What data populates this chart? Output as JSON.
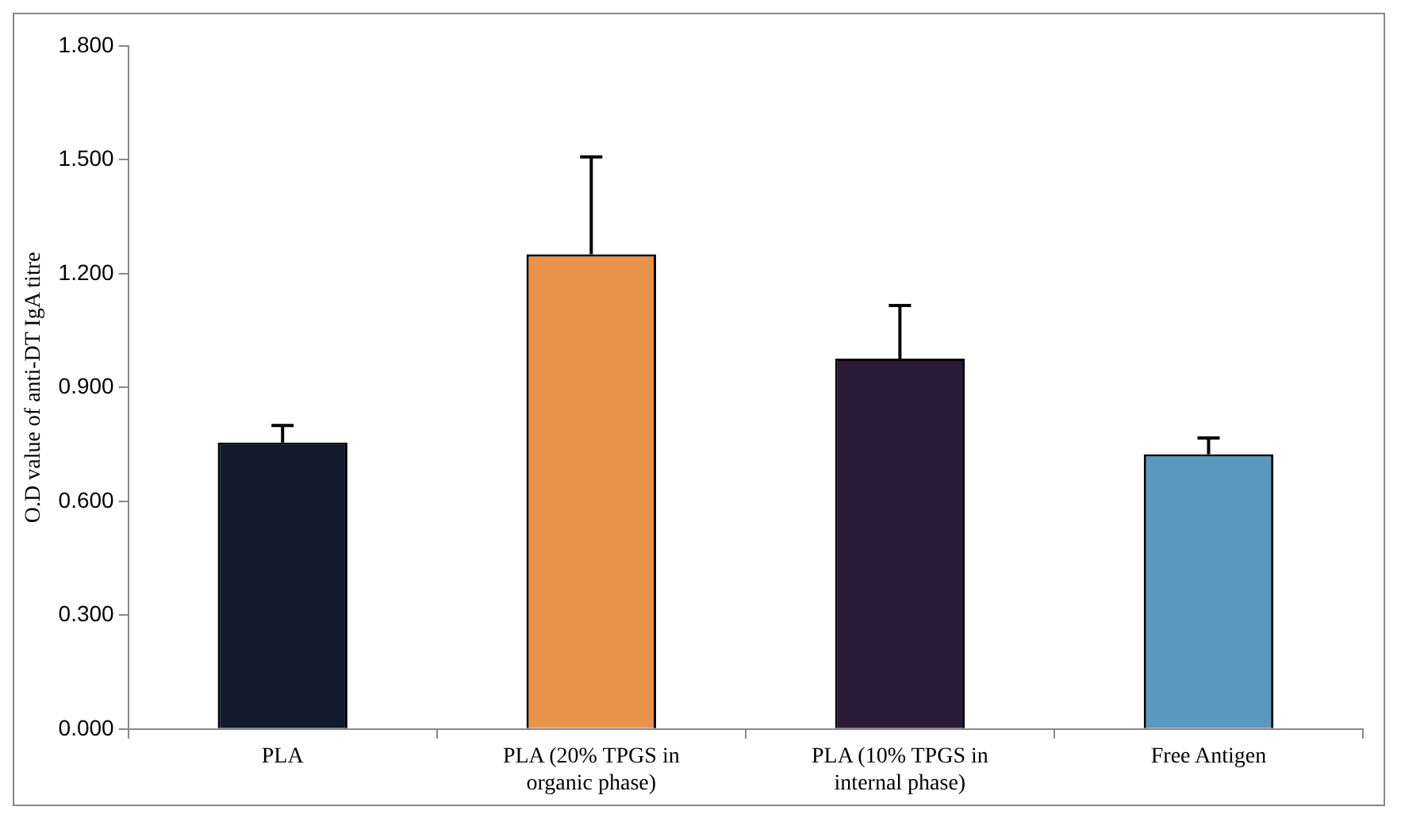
{
  "chart_data": {
    "type": "bar",
    "ylabel": "O.D value of anti-DT IgA titre",
    "categories": [
      "PLA",
      "PLA (20% TPGS in organic phase)",
      "PLA (10% TPGS in internal phase)",
      "Free Antigen"
    ],
    "values": [
      0.755,
      1.251,
      0.976,
      0.724
    ],
    "colors": [
      "#111a2b",
      "#e8924a",
      "#2b1a38",
      "#5a98c0"
    ],
    "errors": [
      [
        0.755,
        0.8
      ],
      [
        1.251,
        1.508
      ],
      [
        0.976,
        1.116
      ],
      [
        0.724,
        0.767
      ]
    ],
    "ylim": [
      0,
      1.8
    ],
    "yticks": [
      {
        "value": 0,
        "label": "0.000"
      },
      {
        "value": 0.3,
        "label": "0.300"
      },
      {
        "value": 0.6,
        "label": "0.600"
      },
      {
        "value": 0.9,
        "label": "0.900"
      },
      {
        "value": 1.2,
        "label": "1.200"
      },
      {
        "value": 1.5,
        "label": "1.500"
      },
      {
        "value": 1.8,
        "label": "1.800"
      }
    ],
    "grid": false,
    "legend": false
  }
}
